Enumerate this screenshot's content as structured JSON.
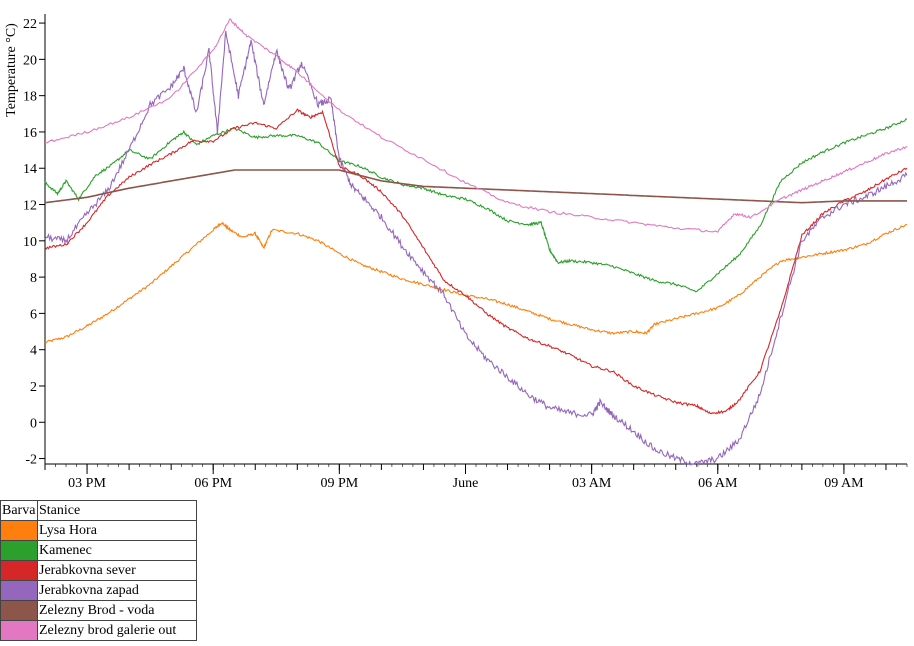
{
  "chart_data": {
    "type": "line",
    "ylabel": "Temperature °C)",
    "ylim": [
      -2.3,
      22.5
    ],
    "yticks": [
      -2,
      0,
      2,
      4,
      6,
      8,
      10,
      12,
      14,
      16,
      18,
      20,
      22
    ],
    "xlim": [
      0,
      20.5
    ],
    "xtick_labels": [
      {
        "x": 1,
        "label": "03 PM"
      },
      {
        "x": 4,
        "label": "06 PM"
      },
      {
        "x": 7,
        "label": "09 PM"
      },
      {
        "x": 10,
        "label": "June"
      },
      {
        "x": 13,
        "label": "03 AM"
      },
      {
        "x": 16,
        "label": "06 AM"
      },
      {
        "x": 19,
        "label": "09 AM"
      }
    ],
    "x_unit_note": "x is hours after 2 PM",
    "series": [
      {
        "name": "Lysa Hora",
        "color": "#ff7f0e",
        "points": [
          [
            0,
            4.4
          ],
          [
            0.5,
            4.7
          ],
          [
            1,
            5.3
          ],
          [
            1.5,
            6
          ],
          [
            2,
            6.8
          ],
          [
            2.5,
            7.6
          ],
          [
            3,
            8.6
          ],
          [
            3.5,
            9.6
          ],
          [
            4,
            10.6
          ],
          [
            4.2,
            11
          ],
          [
            4.4,
            10.6
          ],
          [
            4.7,
            10.2
          ],
          [
            5,
            10.4
          ],
          [
            5.2,
            9.6
          ],
          [
            5.4,
            10.6
          ],
          [
            6,
            10.4
          ],
          [
            6.5,
            10
          ],
          [
            7,
            9.3
          ],
          [
            7.5,
            8.7
          ],
          [
            8,
            8.3
          ],
          [
            8.5,
            7.9
          ],
          [
            9,
            7.6
          ],
          [
            9.5,
            7.3
          ],
          [
            10,
            7
          ],
          [
            10.5,
            6.8
          ],
          [
            11,
            6.5
          ],
          [
            11.5,
            6.1
          ],
          [
            12,
            5.7
          ],
          [
            12.5,
            5.4
          ],
          [
            13,
            5.1
          ],
          [
            13.5,
            4.9
          ],
          [
            14,
            5
          ],
          [
            14.3,
            4.9
          ],
          [
            14.5,
            5.4
          ],
          [
            15,
            5.7
          ],
          [
            15.5,
            6
          ],
          [
            16,
            6.3
          ],
          [
            16.5,
            7
          ],
          [
            17,
            8
          ],
          [
            17.5,
            8.9
          ],
          [
            18,
            9.1
          ],
          [
            18.5,
            9.3
          ],
          [
            19,
            9.5
          ],
          [
            19.5,
            9.8
          ],
          [
            20,
            10.4
          ],
          [
            20.5,
            10.9
          ]
        ]
      },
      {
        "name": "Kamenec",
        "color": "#2ca02c",
        "points": [
          [
            0,
            13.2
          ],
          [
            0.3,
            12.6
          ],
          [
            0.5,
            13.3
          ],
          [
            0.8,
            12.3
          ],
          [
            1.2,
            13.6
          ],
          [
            1.6,
            14.2
          ],
          [
            2,
            15
          ],
          [
            2.5,
            14.5
          ],
          [
            3,
            15.5
          ],
          [
            3.3,
            16
          ],
          [
            3.6,
            15.3
          ],
          [
            4,
            15.8
          ],
          [
            4.5,
            16.2
          ],
          [
            5,
            15.7
          ],
          [
            5.5,
            15.8
          ],
          [
            6,
            15.8
          ],
          [
            6.5,
            15.4
          ],
          [
            7,
            14.4
          ],
          [
            7.5,
            14.1
          ],
          [
            8,
            13.5
          ],
          [
            8.5,
            13.1
          ],
          [
            9,
            12.9
          ],
          [
            9.5,
            12.5
          ],
          [
            10,
            12.3
          ],
          [
            10.5,
            11.8
          ],
          [
            11,
            11.1
          ],
          [
            11.5,
            10.9
          ],
          [
            11.8,
            11
          ],
          [
            12,
            9.5
          ],
          [
            12.2,
            8.8
          ],
          [
            12.5,
            8.9
          ],
          [
            13,
            8.8
          ],
          [
            13.5,
            8.6
          ],
          [
            14,
            8.2
          ],
          [
            14.5,
            7.8
          ],
          [
            15,
            7.6
          ],
          [
            15.5,
            7.2
          ],
          [
            16,
            8.2
          ],
          [
            16.5,
            9.2
          ],
          [
            17,
            10.8
          ],
          [
            17.5,
            13.3
          ],
          [
            18,
            14.3
          ],
          [
            18.5,
            14.9
          ],
          [
            19,
            15.4
          ],
          [
            19.5,
            15.8
          ],
          [
            20,
            16.2
          ],
          [
            20.5,
            16.7
          ]
        ]
      },
      {
        "name": "Jerabkovna sever",
        "color": "#d62728",
        "points": [
          [
            0,
            9.6
          ],
          [
            0.5,
            9.8
          ],
          [
            1,
            11
          ],
          [
            1.5,
            12.5
          ],
          [
            2,
            13.5
          ],
          [
            2.5,
            14.2
          ],
          [
            3,
            14.8
          ],
          [
            3.5,
            15.5
          ],
          [
            4,
            15.5
          ],
          [
            4.5,
            16.2
          ],
          [
            5,
            16.5
          ],
          [
            5.5,
            16.2
          ],
          [
            6,
            17.2
          ],
          [
            6.3,
            16.8
          ],
          [
            6.6,
            17.1
          ],
          [
            7,
            14.1
          ],
          [
            7.5,
            13.6
          ],
          [
            8,
            12.7
          ],
          [
            8.5,
            11.4
          ],
          [
            9,
            9.6
          ],
          [
            9.5,
            7.8
          ],
          [
            10,
            7
          ],
          [
            10.5,
            6
          ],
          [
            11,
            5.2
          ],
          [
            11.5,
            4.6
          ],
          [
            12,
            4.2
          ],
          [
            12.5,
            3.7
          ],
          [
            13,
            3.1
          ],
          [
            13.5,
            2.8
          ],
          [
            14,
            2
          ],
          [
            14.5,
            1.5
          ],
          [
            15,
            1.1
          ],
          [
            15.5,
            0.9
          ],
          [
            15.8,
            0.5
          ],
          [
            16.2,
            0.6
          ],
          [
            16.5,
            1.2
          ],
          [
            17,
            2.8
          ],
          [
            17.5,
            6.2
          ],
          [
            18,
            10.3
          ],
          [
            18.5,
            11.5
          ],
          [
            19,
            12.2
          ],
          [
            19.5,
            12.7
          ],
          [
            20,
            13.4
          ],
          [
            20.5,
            14
          ]
        ]
      },
      {
        "name": "Jerabkovna zapad",
        "color": "#9467bd",
        "points": [
          [
            0,
            10.2
          ],
          [
            0.5,
            10
          ],
          [
            1,
            11.5
          ],
          [
            1.5,
            12.8
          ],
          [
            2,
            15
          ],
          [
            2.5,
            17.5
          ],
          [
            3,
            18.5
          ],
          [
            3.3,
            19.5
          ],
          [
            3.6,
            17
          ],
          [
            3.9,
            20.5
          ],
          [
            4.1,
            16
          ],
          [
            4.3,
            21.5
          ],
          [
            4.6,
            18
          ],
          [
            4.9,
            21
          ],
          [
            5.2,
            17.5
          ],
          [
            5.5,
            20.5
          ],
          [
            5.8,
            18.3
          ],
          [
            6.1,
            19.8
          ],
          [
            6.5,
            17.5
          ],
          [
            6.8,
            17.8
          ],
          [
            7,
            14.5
          ],
          [
            7.3,
            13
          ],
          [
            7.6,
            12.3
          ],
          [
            8,
            11.3
          ],
          [
            8.5,
            9.7
          ],
          [
            9,
            8.3
          ],
          [
            9.5,
            7
          ],
          [
            10,
            4.8
          ],
          [
            10.5,
            3.5
          ],
          [
            11,
            2.5
          ],
          [
            11.5,
            1.5
          ],
          [
            12,
            0.8
          ],
          [
            12.5,
            0.5
          ],
          [
            13,
            0.4
          ],
          [
            13.2,
            1.1
          ],
          [
            13.5,
            0.4
          ],
          [
            14,
            -0.5
          ],
          [
            14.5,
            -1.5
          ],
          [
            15,
            -2
          ],
          [
            15.5,
            -2.3
          ],
          [
            16,
            -2
          ],
          [
            16.5,
            -1
          ],
          [
            17,
            1.5
          ],
          [
            17.5,
            5.8
          ],
          [
            18,
            10
          ],
          [
            18.5,
            11.3
          ],
          [
            19,
            12
          ],
          [
            19.5,
            12.4
          ],
          [
            20,
            13
          ],
          [
            20.5,
            13.6
          ]
        ]
      },
      {
        "name": "Zelezny Brod - voda",
        "color": "#8c564b",
        "points": [
          [
            0,
            12.1
          ],
          [
            1,
            12.4
          ],
          [
            2,
            12.9
          ],
          [
            3,
            13.3
          ],
          [
            4,
            13.7
          ],
          [
            4.5,
            13.9
          ],
          [
            5.5,
            13.9
          ],
          [
            6.5,
            13.9
          ],
          [
            7,
            13.9
          ],
          [
            8,
            13.3
          ],
          [
            9,
            13
          ],
          [
            10,
            12.9
          ],
          [
            11,
            12.8
          ],
          [
            12,
            12.7
          ],
          [
            13,
            12.6
          ],
          [
            14,
            12.5
          ],
          [
            15,
            12.4
          ],
          [
            16,
            12.3
          ],
          [
            17,
            12.2
          ],
          [
            18,
            12.1
          ],
          [
            19,
            12.2
          ],
          [
            20.5,
            12.2
          ]
        ]
      },
      {
        "name": "Zelezny brod galerie out",
        "color": "#e377c2",
        "points": [
          [
            0,
            15.4
          ],
          [
            1,
            16
          ],
          [
            2,
            16.8
          ],
          [
            3,
            17.9
          ],
          [
            4,
            20.5
          ],
          [
            4.4,
            22.2
          ],
          [
            4.8,
            21.3
          ],
          [
            5.5,
            20.2
          ],
          [
            6,
            19.3
          ],
          [
            7,
            17.2
          ],
          [
            8,
            15.7
          ],
          [
            9,
            14.5
          ],
          [
            10,
            13.2
          ],
          [
            11,
            12.1
          ],
          [
            12,
            11.6
          ],
          [
            13,
            11.3
          ],
          [
            14,
            11
          ],
          [
            15,
            10.7
          ],
          [
            16,
            10.5
          ],
          [
            16.4,
            11.5
          ],
          [
            16.8,
            11.3
          ],
          [
            17.5,
            12.3
          ],
          [
            18,
            12.8
          ],
          [
            18.5,
            13.3
          ],
          [
            19,
            13.8
          ],
          [
            19.5,
            14.3
          ],
          [
            20,
            14.8
          ],
          [
            20.5,
            15.2
          ]
        ]
      }
    ]
  },
  "legend": {
    "header_color": "Barva",
    "header_station": "Stanice"
  }
}
